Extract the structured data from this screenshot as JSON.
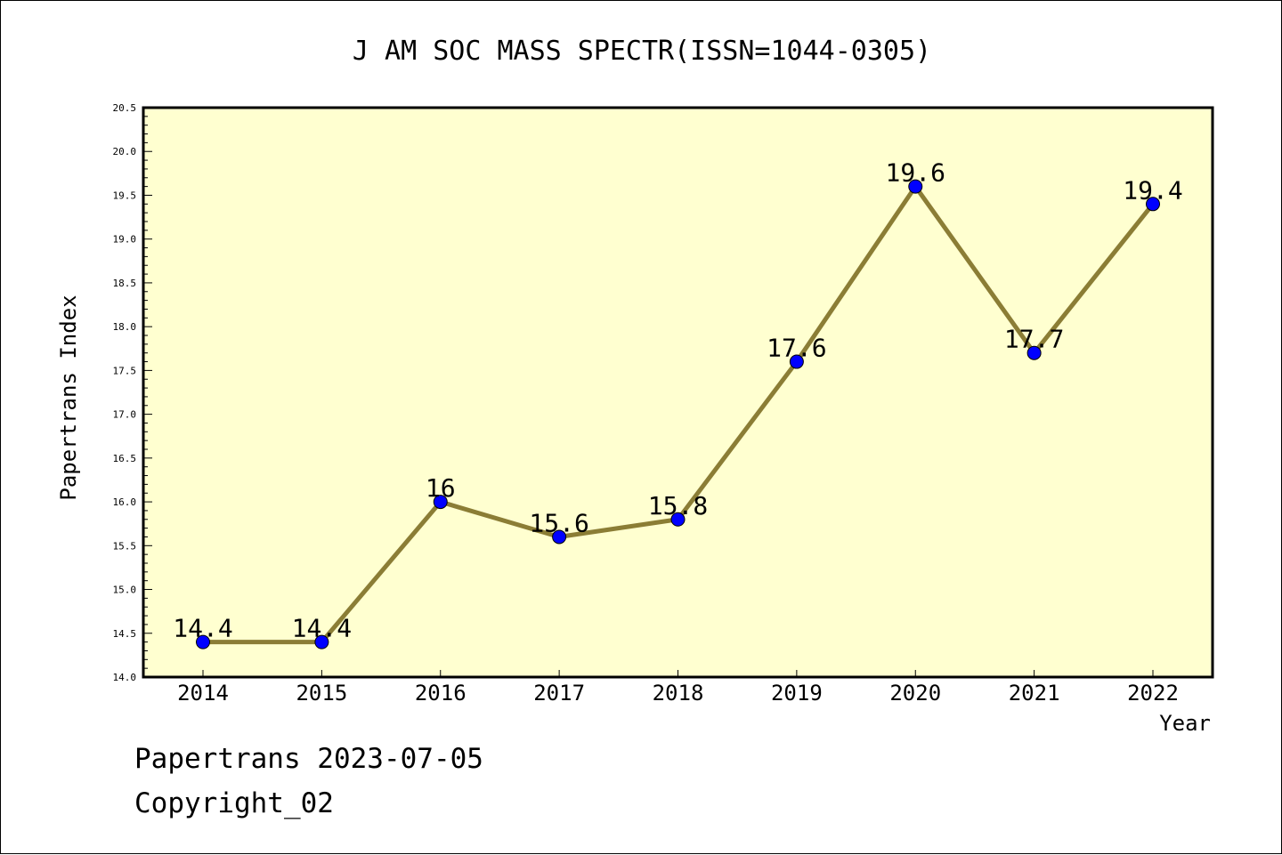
{
  "chart_data": {
    "type": "line",
    "title": "J AM SOC MASS SPECTR(ISSN=1044-0305)",
    "xlabel": "Year",
    "ylabel": "Papertrans Index",
    "categories": [
      "2014",
      "2015",
      "2016",
      "2017",
      "2018",
      "2019",
      "2020",
      "2021",
      "2022"
    ],
    "values": [
      14.4,
      14.4,
      16,
      15.6,
      15.8,
      17.6,
      19.6,
      17.7,
      19.4
    ],
    "data_labels": [
      "14.4",
      "14.4",
      "16",
      "15.6",
      "15.8",
      "17.6",
      "19.6",
      "17.7",
      "19.4"
    ],
    "ylim": [
      14.0,
      20.5
    ],
    "y_major_ticks": [
      "14.0",
      "14.5",
      "15.0",
      "15.5",
      "16.0",
      "16.5",
      "17.0",
      "17.5",
      "18.0",
      "18.5",
      "19.0",
      "19.5",
      "20.0",
      "20.5"
    ],
    "grid": false,
    "colors": {
      "plot_background": "#ffffd0",
      "line": "#8b7d35",
      "marker": "#0000ff"
    }
  },
  "footer": {
    "line1": "Papertrans 2023-07-05",
    "line2": "Copyright_02"
  }
}
